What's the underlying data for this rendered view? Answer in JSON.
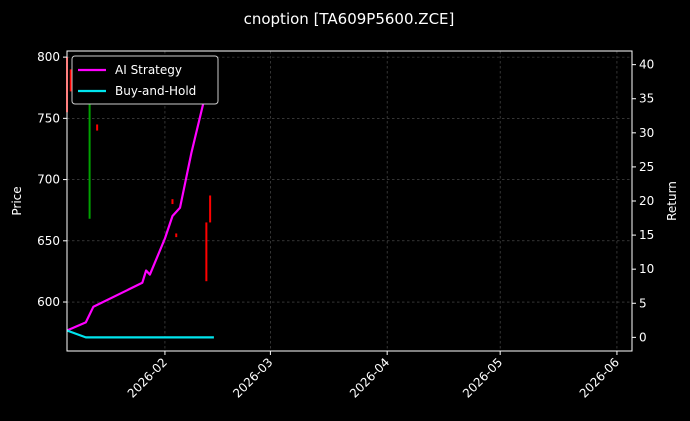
{
  "chart_data": {
    "type": "line",
    "title": "cnoption [TA609P5600.ZCE]",
    "ylabel_left": "Price",
    "ylabel_right": "Return",
    "x_axis": {
      "range": [
        "2026-01-06",
        "2026-06-05"
      ],
      "ticks": [
        "2026-02",
        "2026-03",
        "2026-04",
        "2026-05",
        "2026-06"
      ],
      "tick_dates": [
        "2026-02-01",
        "2026-03-01",
        "2026-04-01",
        "2026-05-01",
        "2026-06-01"
      ]
    },
    "y_left": {
      "range": [
        560,
        805
      ],
      "ticks": [
        600,
        650,
        700,
        750,
        800
      ]
    },
    "y_right": {
      "range": [
        -2,
        42
      ],
      "ticks": [
        0,
        5,
        10,
        15,
        20,
        25,
        30,
        35,
        40
      ]
    },
    "grid": true,
    "legend": {
      "placement": "top-left",
      "entries": [
        "AI Strategy",
        "Buy-and-Hold"
      ]
    },
    "colors": {
      "ai_strategy": "#ff00ff",
      "buy_and_hold": "#00e5ee",
      "candle_up": "#00a000",
      "candle_down": "#ff0000",
      "background": "#000000"
    },
    "candles": [
      {
        "date": "2026-01-06",
        "low": 755,
        "high": 800,
        "dir": "down"
      },
      {
        "date": "2026-01-07",
        "low": 772,
        "high": 790,
        "dir": "down"
      },
      {
        "date": "2026-01-12",
        "low": 668,
        "high": 775,
        "dir": "up"
      },
      {
        "date": "2026-01-14",
        "low": 740,
        "high": 745,
        "dir": "down"
      },
      {
        "date": "2026-02-03",
        "low": 680,
        "high": 684,
        "dir": "down"
      },
      {
        "date": "2026-02-04",
        "low": 653,
        "high": 656,
        "dir": "down"
      },
      {
        "date": "2026-02-12",
        "low": 617,
        "high": 665,
        "dir": "down"
      },
      {
        "date": "2026-02-13",
        "low": 665,
        "high": 687,
        "dir": "down"
      }
    ],
    "series": [
      {
        "name": "AI Strategy",
        "axis": "right",
        "points": [
          [
            "2026-01-06",
            1.0
          ],
          [
            "2026-01-11",
            2.2
          ],
          [
            "2026-01-13",
            4.5
          ],
          [
            "2026-01-26",
            8.0
          ],
          [
            "2026-01-27",
            9.8
          ],
          [
            "2026-01-28",
            9.2
          ],
          [
            "2026-02-01",
            14.5
          ],
          [
            "2026-02-03",
            17.8
          ],
          [
            "2026-02-05",
            19.0
          ],
          [
            "2026-02-08",
            27.0
          ],
          [
            "2026-02-14",
            40.8
          ]
        ]
      },
      {
        "name": "Buy-and-Hold",
        "axis": "right",
        "points": [
          [
            "2026-01-06",
            1.0
          ],
          [
            "2026-01-11",
            0.0
          ],
          [
            "2026-02-14",
            0.0
          ]
        ]
      }
    ]
  }
}
